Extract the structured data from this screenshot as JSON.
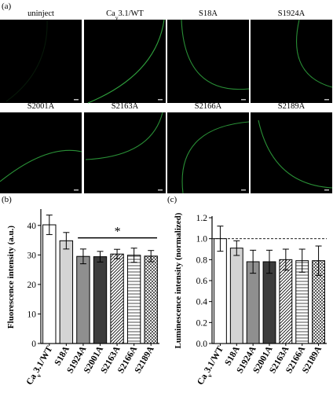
{
  "figure": {
    "panel_a_label": "(a)",
    "panel_b_label": "(b)",
    "panel_c_label": "(c)",
    "cav_label": {
      "base": "Ca",
      "sub": "v",
      "rest": "3.1/WT"
    }
  },
  "micrographs": [
    {
      "label": "uninject"
    },
    {
      "label": "Cav3.1/WT"
    },
    {
      "label": "S18A"
    },
    {
      "label": "S1924A"
    },
    {
      "label": "S2001A"
    },
    {
      "label": "S2163A"
    },
    {
      "label": "S2166A"
    },
    {
      "label": "S2189A"
    }
  ],
  "chart_data": [
    {
      "type": "bar",
      "panel": "b",
      "categories": [
        "Cav3.1/WT",
        "S18A",
        "S1924A",
        "S2001A",
        "S2163A",
        "S2166A",
        "S2189A"
      ],
      "values": [
        40.2,
        34.8,
        29.5,
        29.4,
        30.3,
        29.9,
        29.6
      ],
      "errors": [
        3.3,
        2.8,
        2.5,
        1.8,
        1.6,
        2.4,
        1.9
      ],
      "patterns": [
        "white",
        "lightgray",
        "gray",
        "darkgray",
        "diagonal",
        "horizontal",
        "cross"
      ],
      "ylabel": "Fluorescence intensity (a.u.)",
      "ylim": [
        0,
        45
      ],
      "yticks": [
        "0",
        "10",
        "20",
        "30",
        "40"
      ],
      "significance": {
        "symbol": "*",
        "from": "S1924A",
        "to": "S2189A"
      }
    },
    {
      "type": "bar",
      "panel": "c",
      "categories": [
        "Cav3.1/WT",
        "S18A",
        "S1924A",
        "S2001A",
        "S2163A",
        "S2166A",
        "S2189A"
      ],
      "values": [
        1.0,
        0.91,
        0.78,
        0.78,
        0.8,
        0.79,
        0.79
      ],
      "errors": [
        0.12,
        0.07,
        0.11,
        0.11,
        0.1,
        0.11,
        0.14
      ],
      "patterns": [
        "white",
        "lightgray",
        "gray",
        "darkgray",
        "diagonal",
        "horizontal",
        "cross"
      ],
      "ylabel": "Luminescence intensity (normalized)",
      "ylim": [
        0,
        1.2
      ],
      "yticks": [
        "0.0",
        "0.2",
        "0.4",
        "0.6",
        "0.8",
        "1.0",
        "1.2"
      ],
      "reference_line": 1.0
    }
  ]
}
